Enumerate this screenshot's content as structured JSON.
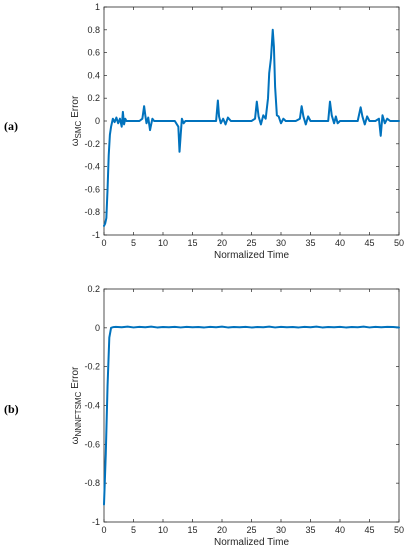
{
  "chart_data": [
    {
      "type": "line",
      "panel_label": "(a)",
      "xlabel": "Normalized Time",
      "ylabel_main": "ω",
      "ylabel_sub": "SMC",
      "ylabel_tail": " Error",
      "xlim": [
        0,
        50
      ],
      "ylim": [
        -1,
        1
      ],
      "xticks": [
        "0",
        "5",
        "10",
        "15",
        "20",
        "25",
        "30",
        "35",
        "40",
        "45",
        "50"
      ],
      "yticks": [
        "-1",
        "-0.8",
        "-0.6",
        "-0.4",
        "-0.2",
        "0",
        "0.2",
        "0.4",
        "0.6",
        "0.8",
        "1"
      ],
      "grid": false,
      "color": "#0072BD",
      "x": [
        0,
        0.2,
        0.4,
        0.6,
        0.8,
        1.0,
        1.2,
        1.5,
        1.8,
        2.1,
        2.4,
        2.7,
        3.0,
        3.2,
        3.4,
        3.6,
        3.8,
        4.0,
        5.0,
        6.0,
        6.5,
        6.8,
        7.0,
        7.2,
        7.5,
        7.8,
        8.2,
        8.5,
        9.0,
        10.0,
        11.0,
        12.0,
        12.6,
        12.8,
        13.0,
        13.2,
        13.5,
        13.8,
        14.0,
        14.5,
        15.0,
        16.0,
        17.0,
        18.0,
        19.0,
        19.3,
        19.5,
        19.8,
        20.2,
        20.6,
        21.0,
        21.5,
        22.0,
        23.0,
        24.0,
        25.0,
        25.6,
        25.9,
        26.2,
        26.6,
        27.0,
        27.4,
        27.8,
        28.0,
        28.3,
        28.6,
        28.8,
        29.0,
        29.3,
        29.6,
        30.0,
        30.4,
        30.8,
        31.5,
        32.5,
        33.2,
        33.5,
        33.8,
        34.2,
        34.6,
        35.0,
        35.5,
        36.0,
        37.0,
        38.0,
        38.3,
        38.6,
        39.0,
        39.3,
        39.6,
        40.0,
        40.5,
        41.0,
        42.0,
        43.0,
        43.5,
        43.8,
        44.2,
        44.6,
        45.0,
        45.5,
        46.0,
        46.6,
        46.9,
        47.2,
        47.6,
        48.0,
        48.5,
        49.0,
        50.0
      ],
      "y": [
        -0.92,
        -0.9,
        -0.85,
        -0.6,
        -0.3,
        -0.12,
        -0.05,
        0.02,
        -0.01,
        0.03,
        -0.02,
        0.02,
        -0.05,
        0.08,
        -0.03,
        0.02,
        0.0,
        0.0,
        0.0,
        0.0,
        0.02,
        0.13,
        0.05,
        -0.02,
        0.03,
        -0.08,
        0.02,
        0.0,
        0.0,
        0.0,
        0.0,
        0.0,
        -0.05,
        -0.27,
        -0.12,
        0.02,
        -0.02,
        0.0,
        0.0,
        0.0,
        0.0,
        0.0,
        0.0,
        0.0,
        0.0,
        0.18,
        0.04,
        -0.02,
        0.02,
        -0.03,
        0.03,
        0.0,
        0.0,
        0.0,
        0.0,
        0.0,
        0.02,
        0.17,
        0.04,
        -0.03,
        0.05,
        0.02,
        0.2,
        0.42,
        0.55,
        0.8,
        0.65,
        0.3,
        0.05,
        0.04,
        -0.02,
        0.02,
        0.0,
        0.0,
        0.0,
        0.02,
        0.13,
        0.04,
        -0.03,
        0.04,
        0.0,
        0.0,
        0.0,
        0.0,
        0.0,
        0.17,
        0.05,
        -0.02,
        0.04,
        -0.02,
        0.0,
        0.0,
        0.0,
        0.0,
        0.0,
        0.12,
        0.04,
        -0.03,
        0.04,
        0.0,
        0.0,
        0.0,
        0.02,
        -0.13,
        0.05,
        -0.02,
        0.02,
        0.0,
        0.0,
        0.0
      ]
    },
    {
      "type": "line",
      "panel_label": "(b)",
      "xlabel": "Normalized Time",
      "ylabel_main": "ω",
      "ylabel_sub": "NNNFTSMC",
      "ylabel_tail": " Error",
      "xlim": [
        0,
        50
      ],
      "ylim": [
        -1,
        0.2
      ],
      "xticks": [
        "0",
        "5",
        "10",
        "15",
        "20",
        "25",
        "30",
        "35",
        "40",
        "45",
        "50"
      ],
      "yticks": [
        "-1",
        "-0.8",
        "-0.6",
        "-0.4",
        "-0.2",
        "0",
        "0.2"
      ],
      "grid": false,
      "color": "#0072BD",
      "x": [
        0,
        0.3,
        0.6,
        0.9,
        1.2,
        1.6,
        2.0,
        3.0,
        4.0,
        5.0,
        6.0,
        7.0,
        8.0,
        9.0,
        10.0,
        11.0,
        12.0,
        13.0,
        14.0,
        15.0,
        16.0,
        17.0,
        18.0,
        19.0,
        20.0,
        21.0,
        22.0,
        23.0,
        24.0,
        25.0,
        26.0,
        27.0,
        28.0,
        29.0,
        30.0,
        31.0,
        32.0,
        33.0,
        34.0,
        35.0,
        36.0,
        37.0,
        38.0,
        39.0,
        40.0,
        41.0,
        42.0,
        43.0,
        44.0,
        45.0,
        46.0,
        47.0,
        48.0,
        49.0,
        50.0
      ],
      "y": [
        -0.91,
        -0.65,
        -0.3,
        -0.05,
        0.0,
        0.004,
        0.005,
        0.003,
        0.006,
        0.002,
        0.005,
        0.003,
        0.006,
        0.002,
        0.004,
        0.003,
        0.005,
        0.002,
        0.005,
        0.003,
        0.004,
        0.002,
        0.005,
        0.003,
        0.006,
        0.002,
        0.004,
        0.003,
        0.005,
        0.002,
        0.004,
        0.003,
        0.006,
        0.002,
        0.005,
        0.003,
        0.004,
        0.002,
        0.005,
        0.003,
        0.006,
        0.002,
        0.004,
        0.003,
        0.005,
        0.002,
        0.004,
        0.003,
        0.006,
        0.002,
        0.005,
        0.003,
        0.005,
        0.004,
        0.002
      ]
    }
  ]
}
